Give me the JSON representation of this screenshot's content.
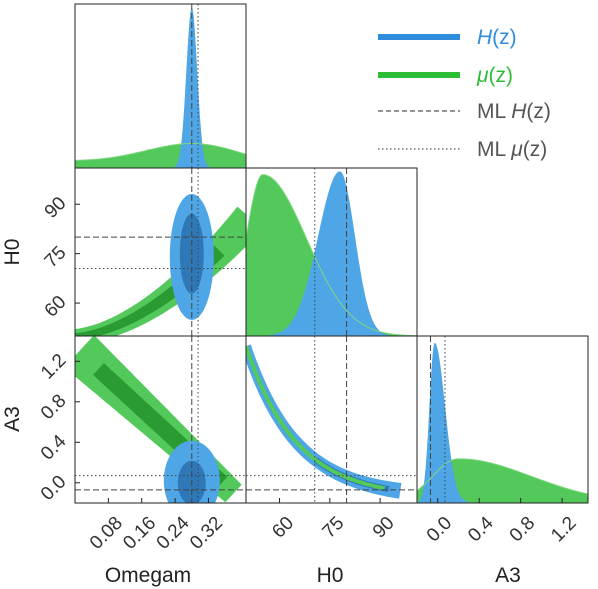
{
  "chart_data": {
    "type": "corner",
    "parameters": [
      "Omegam",
      "H0",
      "A3"
    ],
    "axis_labels": {
      "x": [
        "Omegam",
        "H0",
        "A3"
      ],
      "y": [
        "H0",
        "A3"
      ]
    },
    "ticks": {
      "Omegam": {
        "values": [
          0.08,
          0.16,
          0.24,
          0.32
        ],
        "labels": [
          "0.08",
          "0.16",
          "0.24",
          "0.32"
        ]
      },
      "H0": {
        "values": [
          60,
          75,
          90
        ],
        "labels": [
          "60",
          "75",
          "90"
        ]
      },
      "A3": {
        "values": [
          0.0,
          0.4,
          0.8,
          1.2
        ],
        "labels": [
          "0.0",
          "0.4",
          "0.8",
          "1.2"
        ],
        "y_values": [
          0.0,
          0.4,
          0.8,
          1.2
        ],
        "y_labels": [
          "0.0",
          "0.4",
          "0.8",
          "1.2"
        ]
      }
    },
    "ranges": {
      "Omegam": [
        0.0,
        0.41
      ],
      "H0": [
        50,
        101
      ],
      "A3": [
        -0.2,
        1.45
      ]
    },
    "series": [
      {
        "name": "H(z)",
        "color": "#2f8ddb",
        "fill": "#4ea6e6",
        "fill_dark": "#2e78b8",
        "peaks": {
          "Omegam": 0.28,
          "H0": 78,
          "A3": -0.03
        },
        "marginals": {
          "Omegam": {
            "center": 0.28,
            "sigma": 0.013
          },
          "H0": {
            "center": 78,
            "sigma_left": 6.5,
            "sigma_right": 4.5
          },
          "A3": {
            "center": -0.03,
            "sigma_left": 0.05,
            "sigma_right": 0.1
          }
        }
      },
      {
        "name": "μ(z)",
        "color": "#2ebd36",
        "fill": "#52c95a",
        "fill_dark": "#2a9a33",
        "peaks": {
          "Omegam": 0.29,
          "H0": 55,
          "A3": 0.2
        },
        "marginals": {
          "Omegam": {
            "center": 0.29,
            "sigma": 0.12
          },
          "H0": {
            "center": 55,
            "sigma_left": 5,
            "sigma_right": 13
          },
          "A3": {
            "center": 0.2,
            "sigma_left": 0.25,
            "sigma_right": 0.7
          }
        }
      }
    ],
    "ml_lines": [
      {
        "name": "ML H(z)",
        "style": "dashed",
        "Omegam": 0.28,
        "H0": 80,
        "A3": -0.07
      },
      {
        "name": "ML μ(z)",
        "style": "dotted",
        "Omegam": 0.295,
        "H0": 70.5,
        "A3": 0.07
      }
    ],
    "legend": {
      "position": "top-right",
      "entries": [
        {
          "label_main": "H",
          "label_arg": "(z)",
          "prefix": "",
          "type": "solid",
          "series": 0
        },
        {
          "label_main": "μ",
          "label_arg": "(z)",
          "prefix": "",
          "type": "solid",
          "series": 1
        },
        {
          "label_main": "H",
          "label_arg": "(z)",
          "prefix": "ML ",
          "type": "dashed"
        },
        {
          "label_main": "μ",
          "label_arg": "(z)",
          "prefix": "ML ",
          "type": "dotted"
        }
      ]
    }
  }
}
